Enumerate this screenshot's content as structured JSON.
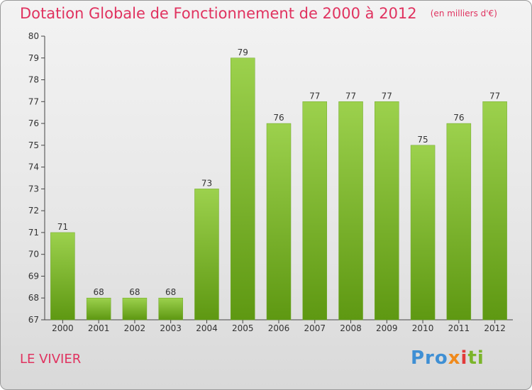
{
  "header": {
    "title": "Dotation Globale de Fonctionnement de 2000 à 2012",
    "subtitle": "(en milliers d'€)"
  },
  "footer": {
    "commune": "LE VIVIER",
    "brand": [
      "Pro",
      "x",
      "i",
      "ti"
    ]
  },
  "colors": {
    "accent": "#e0325f",
    "bar_top": "#9cd14d",
    "bar_bottom": "#5e9812"
  },
  "chart_data": {
    "type": "bar",
    "categories": [
      "2000",
      "2001",
      "2002",
      "2003",
      "2004",
      "2005",
      "2006",
      "2007",
      "2008",
      "2009",
      "2010",
      "2011",
      "2012"
    ],
    "values": [
      71,
      68,
      68,
      68,
      73,
      79,
      76,
      77,
      77,
      77,
      75,
      76,
      77
    ],
    "title": "Dotation Globale de Fonctionnement de 2000 à 2012",
    "ylabel": "",
    "xlabel": "",
    "ylim": [
      67,
      80
    ],
    "yticks": [
      67,
      68,
      69,
      70,
      71,
      72,
      73,
      74,
      75,
      76,
      77,
      78,
      79,
      80
    ],
    "grid": false,
    "legend": "none"
  }
}
